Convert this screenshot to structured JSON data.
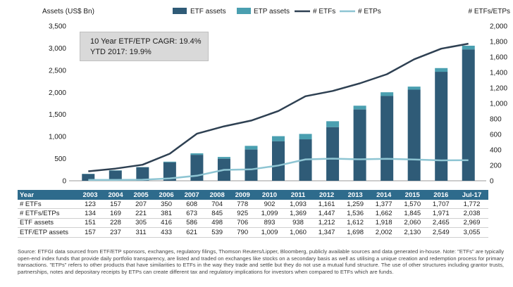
{
  "chart_data": {
    "type": "bar",
    "categories": [
      "2003",
      "2004",
      "2005",
      "2006",
      "2007",
      "2008",
      "2009",
      "2010",
      "2011",
      "2012",
      "2013",
      "2014",
      "2015",
      "2016",
      "Jul-17"
    ],
    "ylabel_left": "Assets (US$ Bn)",
    "ylabel_right": "# ETFs/ETPs",
    "ylim_left": [
      0,
      3500
    ],
    "ylim_right": [
      0,
      2000
    ],
    "yticks_left": [
      "0",
      "500",
      "1,000",
      "1,500",
      "2,000",
      "2,500",
      "3,000",
      "3,500"
    ],
    "yticks_right": [
      "0",
      "200",
      "400",
      "600",
      "800",
      "1,000",
      "1,200",
      "1,400",
      "1,600",
      "1,800",
      "2,000"
    ],
    "legend": [
      "ETF assets",
      "ETP assets",
      "# ETFs",
      "# ETPs"
    ],
    "legend_position": "top",
    "series": [
      {
        "name": "ETF assets",
        "kind": "bar",
        "axis": "left",
        "values": [
          151,
          228,
          305,
          416,
          586,
          498,
          706,
          893,
          938,
          1212,
          1612,
          1918,
          2060,
          2465,
          2969
        ]
      },
      {
        "name": "ETP assets",
        "kind": "bar",
        "axis": "left",
        "values": [
          157,
          237,
          311,
          433,
          621,
          539,
          790,
          1009,
          1060,
          1347,
          1698,
          2002,
          2130,
          2549,
          3055
        ]
      },
      {
        "name": "# ETFs",
        "kind": "line",
        "axis": "right",
        "values": [
          123,
          157,
          207,
          350,
          608,
          704,
          778,
          902,
          1093,
          1161,
          1259,
          1377,
          1570,
          1707,
          1772
        ]
      },
      {
        "name": "# ETPs",
        "kind": "line",
        "axis": "right",
        "values": [
          11,
          12,
          14,
          31,
          65,
          141,
          147,
          197,
          276,
          286,
          277,
          285,
          275,
          264,
          266
        ]
      }
    ],
    "colors": {
      "etf_assets": "#2f5b77",
      "etp_assets": "#4a9fb0",
      "etfs_line": "#2e4052",
      "etps_line": "#8ec5d3"
    }
  },
  "cagr_box": {
    "line1": "10 Year ETF/ETP CAGR: 19.4%",
    "line2": "YTD 2017: 19.9%"
  },
  "table": {
    "header_label": "Year",
    "years": [
      "2003",
      "2004",
      "2005",
      "2006",
      "2007",
      "2008",
      "2009",
      "2010",
      "2011",
      "2012",
      "2013",
      "2014",
      "2015",
      "2016",
      "Jul-17"
    ],
    "rows": [
      {
        "label": "# ETFs",
        "values": [
          "123",
          "157",
          "207",
          "350",
          "608",
          "704",
          "778",
          "902",
          "1,093",
          "1,161",
          "1,259",
          "1,377",
          "1,570",
          "1,707",
          "1,772"
        ]
      },
      {
        "label": "# ETFs/ETPs",
        "values": [
          "134",
          "169",
          "221",
          "381",
          "673",
          "845",
          "925",
          "1,099",
          "1,369",
          "1,447",
          "1,536",
          "1,662",
          "1,845",
          "1,971",
          "2,038"
        ]
      },
      {
        "label": "ETF assets",
        "values": [
          "151",
          "228",
          "305",
          "416",
          "586",
          "498",
          "706",
          "893",
          "938",
          "1,212",
          "1,612",
          "1,918",
          "2,060",
          "2,465",
          "2,969"
        ]
      },
      {
        "label": "ETF/ETP assets",
        "values": [
          "157",
          "237",
          "311",
          "433",
          "621",
          "539",
          "790",
          "1,009",
          "1,060",
          "1,347",
          "1,698",
          "2,002",
          "2,130",
          "2,549",
          "3,055"
        ]
      }
    ]
  },
  "source_note": "Source: ETFGI data sourced from ETF/ETP sponsors, exchanges, regulatory filings, Thomson Reuters/Lipper, Bloomberg, publicly available sources and data generated in-house. Note: \"ETFs\" are typically open-end index funds that provide daily portfolio transparency, are listed and traded on exchanges like stocks on a secondary basis as well as utilising a unique creation and redemption process for primary transactions. \"ETPs\" refers to other products that have similarities to ETFs in the way they trade and settle but they do not use a mutual fund structure. The use of other structures including grantor trusts, partnerships, notes and depositary receipts by ETPs can create different tax and regulatory implications for investors when compared to ETFs which are funds."
}
